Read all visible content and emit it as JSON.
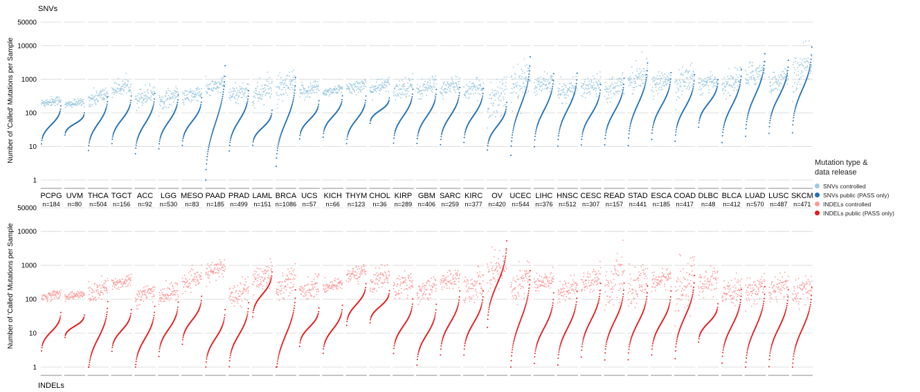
{
  "chart_data": {
    "type": "scatter",
    "description_units": "mutations per sample (log scale)",
    "cancer_types": [
      {
        "code": "PCPG",
        "n": "n=184"
      },
      {
        "code": "UVM",
        "n": "n=80"
      },
      {
        "code": "THCA",
        "n": "n=504"
      },
      {
        "code": "TGCT",
        "n": "n=156"
      },
      {
        "code": "ACC",
        "n": "n=92"
      },
      {
        "code": "LGG",
        "n": "n=530"
      },
      {
        "code": "MESO",
        "n": "n=83"
      },
      {
        "code": "PAAD",
        "n": "n=185"
      },
      {
        "code": "PRAD",
        "n": "n=499"
      },
      {
        "code": "LAML",
        "n": "n=151"
      },
      {
        "code": "BRCA",
        "n": "n=1086"
      },
      {
        "code": "UCS",
        "n": "n=57"
      },
      {
        "code": "KICH",
        "n": "n=66"
      },
      {
        "code": "THYM",
        "n": "n=123"
      },
      {
        "code": "CHOL",
        "n": "n=36"
      },
      {
        "code": "KIRP",
        "n": "n=289"
      },
      {
        "code": "GBM",
        "n": "n=406"
      },
      {
        "code": "SARC",
        "n": "n=259"
      },
      {
        "code": "KIRC",
        "n": "n=377"
      },
      {
        "code": "OV",
        "n": "n=420"
      },
      {
        "code": "UCEC",
        "n": "n=544"
      },
      {
        "code": "LIHC",
        "n": "n=376"
      },
      {
        "code": "HNSC",
        "n": "n=512"
      },
      {
        "code": "CESC",
        "n": "n=307"
      },
      {
        "code": "READ",
        "n": "n=157"
      },
      {
        "code": "STAD",
        "n": "n=441"
      },
      {
        "code": "ESCA",
        "n": "n=185"
      },
      {
        "code": "COAD",
        "n": "n=417"
      },
      {
        "code": "DLBC",
        "n": "n=48"
      },
      {
        "code": "BLCA",
        "n": "n=412"
      },
      {
        "code": "LUAD",
        "n": "n=570"
      },
      {
        "code": "LUSC",
        "n": "n=487"
      },
      {
        "code": "SKCM",
        "n": "n=471"
      }
    ],
    "panels": [
      {
        "title": "SNVs",
        "ylabel": "Number of 'Called' Mutations per Sample",
        "y_scale": "log",
        "ylim": [
          1,
          50000
        ],
        "y_ticks": [
          1,
          10,
          100,
          1000,
          10000,
          50000
        ],
        "y_tick_labels": [
          "1",
          "10",
          "100",
          "1000",
          "10000",
          "50000"
        ],
        "series": [
          {
            "name": "SNVs controlled",
            "color": "#9ecae1",
            "median": [
              220,
              190,
              300,
              560,
              330,
              280,
              330,
              600,
              390,
              420,
              560,
              480,
              460,
              600,
              580,
              560,
              560,
              600,
              500,
              300,
              790,
              730,
              480,
              640,
              640,
              1190,
              800,
              920,
              740,
              810,
              1500,
              900,
              1950
            ],
            "spread": [
              0.12,
              0.1,
              0.22,
              0.18,
              0.26,
              0.24,
              0.2,
              0.22,
              0.26,
              0.35,
              0.36,
              0.22,
              0.12,
              0.18,
              0.2,
              0.26,
              0.26,
              0.22,
              0.22,
              0.6,
              0.44,
              0.26,
              0.26,
              0.28,
              0.3,
              0.36,
              0.24,
              0.42,
              0.2,
              0.34,
              0.34,
              0.28,
              0.5
            ]
          },
          {
            "name": "SNVs public (PASS only)",
            "color": "#2171b5",
            "median": [
              44,
              47,
              48,
              62,
              48,
              54,
              55,
              50,
              58,
              36,
              54,
              62,
              78,
              62,
              116,
              80,
              78,
              80,
              84,
              40,
              160,
              120,
              124,
              88,
              110,
              180,
              160,
              140,
              190,
              160,
              340,
              300,
              480
            ],
            "spread": [
              0.24,
              0.14,
              0.34,
              0.3,
              0.38,
              0.34,
              0.3,
              0.72,
              0.38,
              0.22,
              0.56,
              0.24,
              0.26,
              0.3,
              0.16,
              0.34,
              0.34,
              0.36,
              0.34,
              0.3,
              0.62,
              0.46,
              0.46,
              0.38,
              0.42,
              0.52,
              0.42,
              0.42,
              0.3,
              0.46,
              0.52,
              0.46,
              0.54
            ]
          }
        ]
      },
      {
        "title": "INDELs",
        "ylabel": "Number of 'Called' Mutations per Sample",
        "y_scale": "log",
        "ylim": [
          1,
          50000
        ],
        "y_ticks": [
          1,
          10,
          100,
          1000,
          10000,
          50000
        ],
        "y_tick_labels": [
          "1",
          "10",
          "100",
          "1000",
          "10000",
          "50000"
        ],
        "series": [
          {
            "name": "INDELs controlled",
            "color": "#fc9b9b",
            "median": [
              130,
              130,
              170,
              320,
              140,
              150,
              350,
              720,
              160,
              460,
              290,
              210,
              260,
              580,
              410,
              260,
              200,
              380,
              240,
              740,
              340,
              320,
              210,
              370,
              330,
              240,
              380,
              280,
              310,
              160,
              200,
              220,
              170
            ],
            "spread": [
              0.12,
              0.1,
              0.3,
              0.18,
              0.24,
              0.26,
              0.22,
              0.26,
              0.3,
              0.36,
              0.4,
              0.26,
              0.16,
              0.2,
              0.3,
              0.3,
              0.28,
              0.26,
              0.4,
              0.52,
              0.5,
              0.24,
              0.28,
              0.28,
              0.6,
              0.48,
              0.26,
              0.7,
              0.3,
              0.32,
              0.34,
              0.34,
              0.36
            ]
          },
          {
            "name": "INDELs public (PASS only)",
            "color": "#e41a1c",
            "median": [
              11,
              16,
              7,
              12,
              7,
              13,
              24,
              7,
              9,
              140,
              9,
              15,
              13,
              70,
              60,
              16,
              9,
              20,
              20,
              280,
              24,
              14,
              14,
              24,
              22,
              20,
              20,
              30,
              20,
              16,
              14,
              14,
              13
            ],
            "spread": [
              0.24,
              0.14,
              0.46,
              0.26,
              0.4,
              0.34,
              0.3,
              0.36,
              0.4,
              0.28,
              0.56,
              0.24,
              0.3,
              0.26,
              0.2,
              0.34,
              0.38,
              0.4,
              0.4,
              0.54,
              0.62,
              0.44,
              0.46,
              0.46,
              0.48,
              0.46,
              0.4,
              0.52,
              0.24,
              0.46,
              0.52,
              0.48,
              0.52
            ]
          }
        ]
      }
    ],
    "legend": {
      "title_line1": "Mutation type &",
      "title_line2": "data release",
      "position": "right"
    },
    "grid": true
  }
}
